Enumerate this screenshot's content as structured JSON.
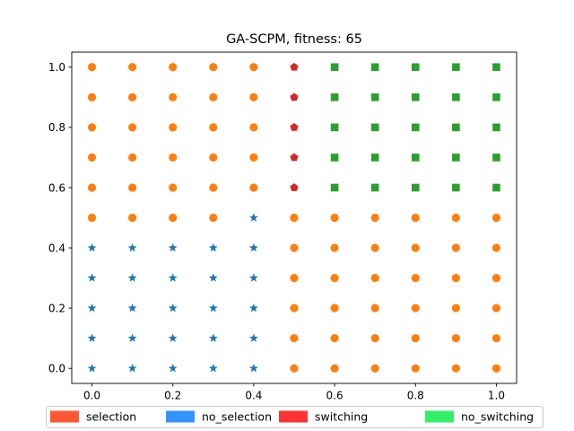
{
  "chart_data": {
    "type": "scatter",
    "title": "GA-SCPM, fitness: 65",
    "xlabel": "",
    "ylabel": "",
    "xlim": [
      -0.05,
      1.05
    ],
    "ylim": [
      -0.05,
      1.05
    ],
    "x_ticks": [
      "0.0",
      "0.2",
      "0.4",
      "0.6",
      "0.8",
      "1.0"
    ],
    "y_ticks": [
      "0.0",
      "0.2",
      "0.4",
      "0.6",
      "0.8",
      "1.0"
    ],
    "grid": false,
    "legend_position": "bottom",
    "legend": [
      {
        "label": "selection",
        "color": "#FF5733"
      },
      {
        "label": "no_selection",
        "color": "#3393FF"
      },
      {
        "label": "switching",
        "color": "#FF3333"
      },
      {
        "label": "no_switching",
        "color": "#33EE66"
      }
    ],
    "marker_classes": {
      "star": {
        "shape": "star",
        "color": "#1f77b4"
      },
      "circle": {
        "shape": "circle",
        "color": "#ff7f0e"
      },
      "pentagon": {
        "shape": "pentagon",
        "color": "#d62728"
      },
      "square": {
        "shape": "square",
        "color": "#2ca02c"
      }
    },
    "x_values": [
      0.0,
      0.1,
      0.2,
      0.3,
      0.4,
      0.5,
      0.6,
      0.7,
      0.8,
      0.9,
      1.0
    ],
    "y_values": [
      1.0,
      0.9,
      0.8,
      0.7,
      0.6,
      0.5,
      0.4,
      0.3,
      0.2,
      0.1,
      0.0
    ],
    "grid_markers": [
      "CCCCCPSSSSS",
      "CCCCCPSSSSS",
      "CCCCCPSSSSS",
      "CCCCCPSSSSS",
      "CCCCCPSSSSS",
      "CCCCTCCCCCC",
      "TTTTTCCCCCC",
      "TTTTTCCCCCC",
      "TTTTTCCCCCC",
      "TTTTTCCCCCC",
      "TTTTTCCCCCC"
    ],
    "grid_code_legend": {
      "C": "circle",
      "T": "star",
      "P": "pentagon",
      "S": "square"
    }
  }
}
